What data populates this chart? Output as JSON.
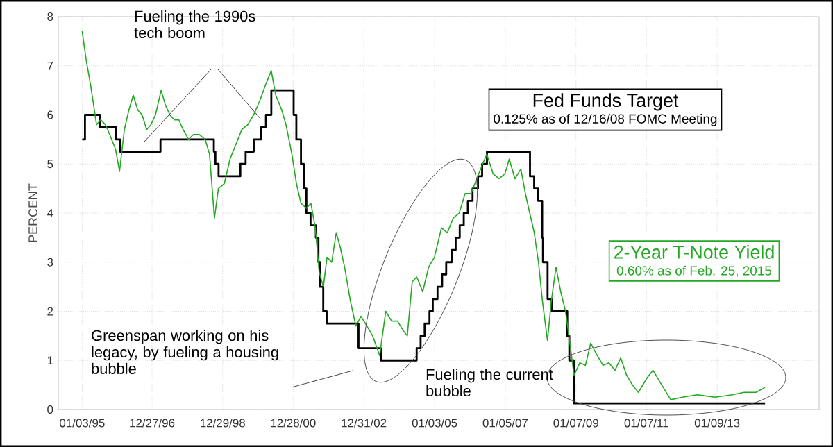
{
  "chart_data": {
    "type": "line",
    "ylabel": "PERCENT",
    "xlim": [
      "1994-05-01",
      "2015-12-01"
    ],
    "xticks": [
      {
        "value": "1995-01-03",
        "label": "01/03/95"
      },
      {
        "value": "1996-12-27",
        "label": "12/27/96"
      },
      {
        "value": "1998-12-29",
        "label": "12/29/98"
      },
      {
        "value": "2000-12-28",
        "label": "12/28/00"
      },
      {
        "value": "2002-12-31",
        "label": "12/31/02"
      },
      {
        "value": "2005-01-03",
        "label": "01/03/05"
      },
      {
        "value": "2007-01-05",
        "label": "01/05/07"
      },
      {
        "value": "2009-01-07",
        "label": "01/07/09"
      },
      {
        "value": "2011-01-07",
        "label": "01/07/11"
      },
      {
        "value": "2013-01-09",
        "label": "01/09/13"
      }
    ],
    "ylim": [
      0,
      8
    ],
    "yticks": [
      0,
      1,
      2,
      3,
      4,
      5,
      6,
      7,
      8
    ],
    "grid": true,
    "marker": "none",
    "line_style": "solid",
    "series": [
      {
        "name": "Fed Funds Target",
        "type": "step",
        "color": "#000000",
        "x": [
          "1995-01-03",
          "1995-02-01",
          "1995-07-06",
          "1995-12-19",
          "1996-01-31",
          "1997-03-25",
          "1998-09-29",
          "1998-10-15",
          "1998-11-17",
          "1999-06-30",
          "1999-08-24",
          "1999-11-16",
          "2000-02-02",
          "2000-03-21",
          "2000-05-16",
          "2001-01-03",
          "2001-01-31",
          "2001-03-20",
          "2001-04-18",
          "2001-05-15",
          "2001-06-27",
          "2001-08-21",
          "2001-09-17",
          "2001-10-02",
          "2001-11-06",
          "2001-12-11",
          "2002-11-06",
          "2003-06-25",
          "2004-06-30",
          "2004-08-10",
          "2004-09-21",
          "2004-11-10",
          "2004-12-14",
          "2005-02-02",
          "2005-03-22",
          "2005-05-03",
          "2005-06-30",
          "2005-08-09",
          "2005-09-20",
          "2005-11-01",
          "2005-12-13",
          "2006-01-31",
          "2006-03-28",
          "2006-05-10",
          "2006-06-29",
          "2007-09-18",
          "2007-10-31",
          "2007-12-11",
          "2008-01-22",
          "2008-01-30",
          "2008-03-18",
          "2008-04-30",
          "2008-10-08",
          "2008-10-29",
          "2008-12-16",
          "2014-05-20"
        ],
        "values": [
          5.5,
          6.0,
          5.75,
          5.5,
          5.25,
          5.5,
          5.25,
          5.0,
          4.75,
          5.0,
          5.25,
          5.5,
          5.75,
          6.0,
          6.5,
          6.0,
          5.5,
          5.0,
          4.5,
          4.0,
          3.75,
          3.5,
          3.0,
          2.5,
          2.0,
          1.75,
          1.25,
          1.0,
          1.25,
          1.5,
          1.75,
          2.0,
          2.25,
          2.5,
          2.75,
          3.0,
          3.25,
          3.5,
          3.75,
          4.0,
          4.25,
          4.5,
          4.75,
          5.0,
          5.25,
          4.75,
          4.5,
          4.25,
          3.5,
          3.0,
          2.25,
          2.0,
          1.5,
          1.0,
          0.125,
          0.125
        ]
      },
      {
        "name": "2-Year T-Note Yield",
        "color": "#22a822",
        "x": [
          "1995-01-03",
          "1995-02-15",
          "1995-04-01",
          "1995-06-01",
          "1995-07-15",
          "1995-09-01",
          "1995-10-15",
          "1995-12-15",
          "1996-01-25",
          "1996-03-15",
          "1996-05-01",
          "1996-06-15",
          "1996-08-01",
          "1996-09-15",
          "1996-11-01",
          "1996-12-15",
          "1997-02-01",
          "1997-04-01",
          "1997-05-15",
          "1997-07-01",
          "1997-08-15",
          "1997-10-01",
          "1997-11-15",
          "1998-01-10",
          "1998-03-01",
          "1998-05-01",
          "1998-07-01",
          "1998-08-15",
          "1998-10-05",
          "1998-11-15",
          "1999-01-15",
          "1999-03-15",
          "1999-05-15",
          "1999-07-15",
          "1999-09-15",
          "1999-11-15",
          "2000-01-20",
          "2000-03-15",
          "2000-05-15",
          "2000-07-01",
          "2000-09-01",
          "2000-10-15",
          "2000-12-15",
          "2001-02-01",
          "2001-03-20",
          "2001-05-15",
          "2001-07-01",
          "2001-08-15",
          "2001-09-25",
          "2001-11-07",
          "2001-12-15",
          "2002-02-01",
          "2002-03-20",
          "2002-05-01",
          "2002-06-15",
          "2002-08-15",
          "2002-10-10",
          "2002-12-01",
          "2003-02-01",
          "2003-04-01",
          "2003-06-13",
          "2003-08-15",
          "2003-10-15",
          "2003-12-15",
          "2004-02-15",
          "2004-03-25",
          "2004-05-15",
          "2004-07-01",
          "2004-09-01",
          "2004-11-01",
          "2004-12-31",
          "2005-03-15",
          "2005-05-15",
          "2005-07-15",
          "2005-09-15",
          "2005-11-15",
          "2006-01-15",
          "2006-03-15",
          "2006-05-15",
          "2006-06-28",
          "2006-09-01",
          "2006-11-01",
          "2007-01-01",
          "2007-02-15",
          "2007-04-15",
          "2007-06-15",
          "2007-08-01",
          "2007-09-15",
          "2007-11-01",
          "2007-12-15",
          "2008-01-25",
          "2008-03-17",
          "2008-04-25",
          "2008-06-13",
          "2008-08-01",
          "2008-09-20",
          "2008-11-01",
          "2008-12-17",
          "2009-02-15",
          "2009-04-15",
          "2009-06-08",
          "2009-08-15",
          "2009-10-15",
          "2009-12-15",
          "2010-02-15",
          "2010-04-15",
          "2010-06-15",
          "2010-08-15",
          "2010-10-15",
          "2011-01-15",
          "2011-03-15",
          "2011-05-15",
          "2011-07-15",
          "2011-09-15",
          "2012-01-15",
          "2012-06-15",
          "2012-12-15",
          "2013-06-15",
          "2013-10-15",
          "2014-02-15",
          "2014-05-20"
        ],
        "values": [
          7.7,
          7.1,
          6.6,
          5.8,
          5.9,
          5.8,
          5.6,
          5.3,
          4.85,
          5.7,
          6.1,
          6.4,
          6.1,
          6.0,
          5.7,
          5.8,
          6.0,
          6.5,
          6.2,
          6.0,
          5.9,
          5.9,
          5.7,
          5.5,
          5.6,
          5.6,
          5.5,
          5.2,
          3.9,
          4.5,
          4.6,
          5.1,
          5.4,
          5.7,
          5.8,
          6.0,
          6.3,
          6.6,
          6.9,
          6.4,
          6.1,
          5.8,
          5.2,
          4.6,
          4.2,
          4.1,
          4.2,
          3.7,
          2.8,
          2.5,
          3.1,
          3.0,
          3.6,
          3.3,
          2.9,
          2.2,
          1.7,
          1.9,
          1.7,
          1.5,
          1.1,
          2.0,
          1.8,
          1.8,
          1.6,
          1.5,
          2.6,
          2.7,
          2.4,
          2.9,
          3.1,
          3.7,
          3.6,
          3.9,
          4.0,
          4.4,
          4.4,
          4.7,
          5.0,
          5.2,
          4.8,
          4.7,
          4.8,
          5.1,
          4.7,
          4.9,
          4.4,
          4.0,
          3.6,
          3.0,
          2.2,
          1.4,
          2.2,
          2.9,
          2.4,
          2.0,
          1.4,
          0.7,
          0.95,
          0.9,
          1.35,
          1.1,
          0.9,
          0.95,
          0.8,
          1.05,
          0.7,
          0.5,
          0.35,
          0.65,
          0.8,
          0.6,
          0.4,
          0.2,
          0.25,
          0.3,
          0.25,
          0.3,
          0.35,
          0.35,
          0.45
        ]
      }
    ],
    "annotations": [
      "Fueling the 1990s tech boom",
      "Greenspan working on his legacy, by fueling a housing bubble",
      "Fueling the current bubble",
      "0.125% as of 12/16/08 FOMC Meeting",
      "0.60% as of Feb. 25, 2015"
    ]
  }
}
